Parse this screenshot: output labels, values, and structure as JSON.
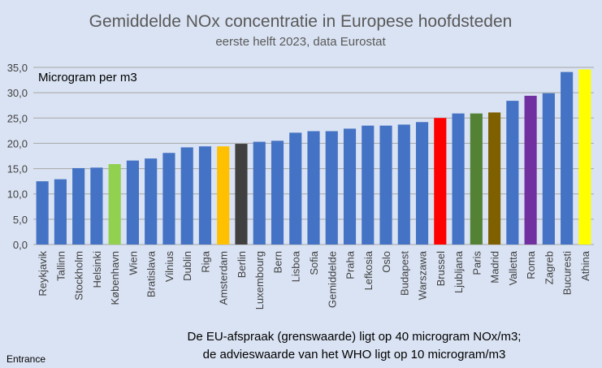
{
  "chart_data": {
    "type": "bar",
    "title": "Gemiddelde NOx concentratie in Europese hoofdsteden",
    "subtitle": "eerste helft 2023, data Eurostat",
    "ylabel": "Microgram per m3",
    "xlabel": "",
    "ylim": [
      0,
      35
    ],
    "yticks": [
      "0,0",
      "5,0",
      "10,0",
      "15,0",
      "20,0",
      "25,0",
      "30,0",
      "35,0"
    ],
    "grid": true,
    "categories": [
      "Reykjavik",
      "Tallinn",
      "Stockholm",
      "Helsinki",
      "København",
      "Wien",
      "Bratislava",
      "Vilnius",
      "Dublin",
      "Riga",
      "Amsterdam",
      "Berlin",
      "Luxembourg",
      "Bern",
      "Lisboa",
      "Sofia",
      "Gemiddelde",
      "Praha",
      "Lefkosia",
      "Oslo",
      "Budapest",
      "Warszawa",
      "Brussel",
      "Ljubljana",
      "Paris",
      "Madrid",
      "Valletta",
      "Roma",
      "Zagreb",
      "Bucuresti",
      "Athina"
    ],
    "values": [
      12.5,
      12.9,
      15.1,
      15.2,
      15.9,
      16.6,
      17.0,
      18.1,
      19.2,
      19.4,
      19.4,
      19.9,
      20.3,
      20.5,
      22.1,
      22.4,
      22.4,
      22.9,
      23.5,
      23.5,
      23.7,
      24.2,
      25.0,
      25.9,
      25.9,
      26.1,
      28.4,
      29.4,
      29.9,
      34.1,
      34.6
    ],
    "colors": [
      "#4472c4",
      "#4472c4",
      "#4472c4",
      "#4472c4",
      "#92d050",
      "#4472c4",
      "#4472c4",
      "#4472c4",
      "#4472c4",
      "#4472c4",
      "#ffc000",
      "#404040",
      "#4472c4",
      "#4472c4",
      "#4472c4",
      "#4472c4",
      "#4472c4",
      "#4472c4",
      "#4472c4",
      "#4472c4",
      "#4472c4",
      "#4472c4",
      "#ff0000",
      "#4472c4",
      "#548235",
      "#7f6000",
      "#4472c4",
      "#7030a0",
      "#4472c4",
      "#4472c4",
      "#ffff00"
    ],
    "note_line1": "De EU-afspraak (grenswaarde) ligt op 40 microgram NOx/m3;",
    "note_line2": "de advieswaarde van het WHO ligt op 10 microgram/m3",
    "source": "Entrance"
  }
}
